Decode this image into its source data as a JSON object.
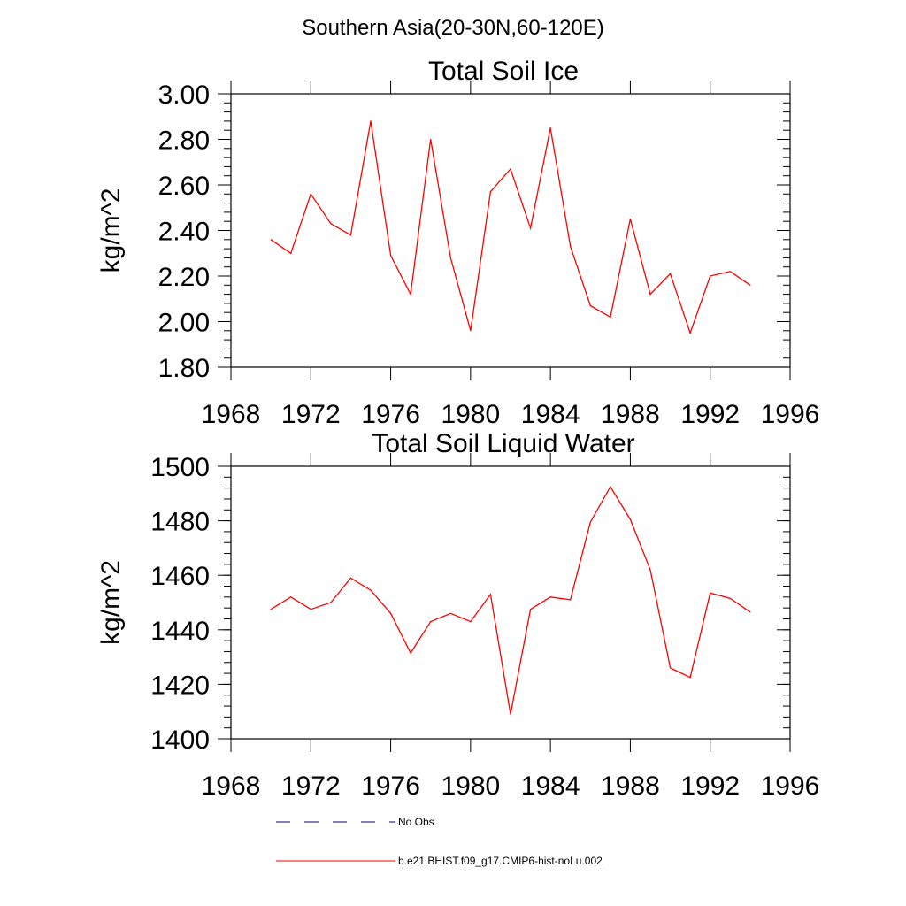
{
  "page": {
    "suptitle": "Southern Asia(20-30N,60-120E)"
  },
  "colors": {
    "series": "#ff0000",
    "obs": "#000080",
    "axis": "#000000"
  },
  "legend": {
    "items": [
      {
        "label": "No Obs",
        "style": "dashed",
        "color": "#000080"
      },
      {
        "label": "b.e21.BHIST.f09_g17.CMIP6-hist-noLu.002",
        "style": "solid",
        "color": "#ff0000"
      }
    ]
  },
  "chart_data": [
    {
      "type": "line",
      "title": "Total Soil Ice",
      "xlabel": "",
      "ylabel": "kg/m^2",
      "xlim": [
        1968,
        1996
      ],
      "ylim": [
        1.8,
        3.0
      ],
      "xticks": [
        "1968",
        "1972",
        "1976",
        "1980",
        "1984",
        "1988",
        "1992",
        "1996"
      ],
      "yticks": [
        "1.80",
        "2.00",
        "2.20",
        "2.40",
        "2.60",
        "2.80",
        "3.00"
      ],
      "yminor_step": 0.04,
      "grid": false,
      "series": [
        {
          "name": "b.e21.BHIST.f09_g17.CMIP6-hist-noLu.002",
          "x": [
            1970,
            1971,
            1972,
            1973,
            1974,
            1975,
            1976,
            1977,
            1978,
            1979,
            1980,
            1981,
            1982,
            1983,
            1984,
            1985,
            1986,
            1987,
            1988,
            1989,
            1990,
            1991,
            1992,
            1993,
            1994
          ],
          "y": [
            2.36,
            2.3,
            2.56,
            2.43,
            2.38,
            2.88,
            2.29,
            2.12,
            2.8,
            2.28,
            1.96,
            2.57,
            2.67,
            2.41,
            2.85,
            2.33,
            2.07,
            2.02,
            2.45,
            2.12,
            2.21,
            1.95,
            2.2,
            2.22,
            2.16
          ]
        }
      ]
    },
    {
      "type": "line",
      "title": "Total Soil Liquid Water",
      "xlabel": "",
      "ylabel": "kg/m^2",
      "xlim": [
        1968,
        1996
      ],
      "ylim": [
        1400,
        1500
      ],
      "xticks": [
        "1968",
        "1972",
        "1976",
        "1980",
        "1984",
        "1988",
        "1992",
        "1996"
      ],
      "yticks": [
        "1400",
        "1420",
        "1440",
        "1460",
        "1480",
        "1500"
      ],
      "yminor_step": 4,
      "grid": false,
      "series": [
        {
          "name": "b.e21.BHIST.f09_g17.CMIP6-hist-noLu.002",
          "x": [
            1970,
            1971,
            1972,
            1973,
            1974,
            1975,
            1976,
            1977,
            1978,
            1979,
            1980,
            1981,
            1982,
            1983,
            1984,
            1985,
            1986,
            1987,
            1988,
            1989,
            1990,
            1991,
            1992,
            1993,
            1994
          ],
          "y": [
            1447.5,
            1452,
            1447.5,
            1450,
            1459,
            1454.5,
            1446,
            1431.5,
            1443,
            1446,
            1443,
            1453,
            1409,
            1447.5,
            1452,
            1451,
            1479.5,
            1492.5,
            1480.5,
            1462,
            1426,
            1422.5,
            1453.5,
            1451.5,
            1446.5
          ]
        }
      ]
    }
  ]
}
